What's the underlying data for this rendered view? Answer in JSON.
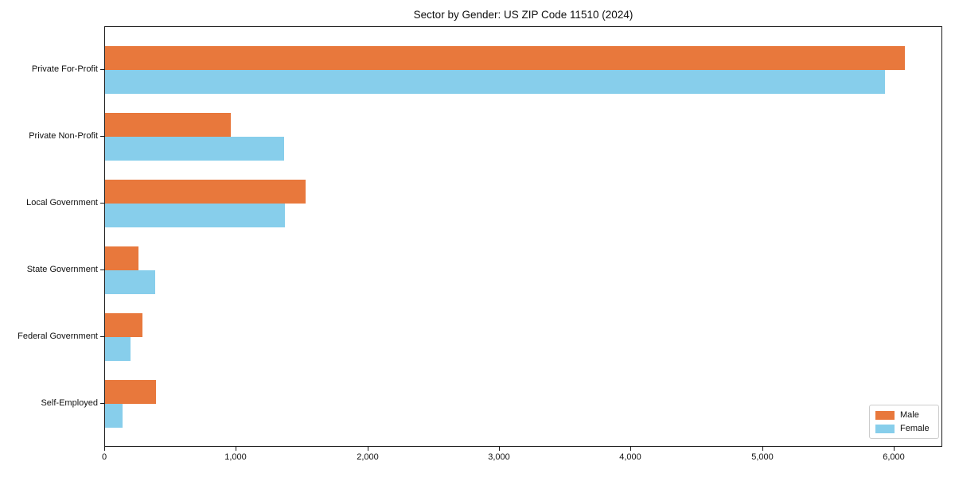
{
  "chart_data": {
    "type": "bar",
    "orientation": "horizontal",
    "title": "Sector by Gender: US ZIP Code 11510 (2024)",
    "categories": [
      "Private For-Profit",
      "Private Non-Profit",
      "Local Government",
      "State Government",
      "Federal Government",
      "Self-Employed"
    ],
    "series": [
      {
        "name": "Male",
        "color": "#e8783c",
        "values": [
          6080,
          955,
          1525,
          255,
          285,
          390
        ]
      },
      {
        "name": "Female",
        "color": "#87ceeb",
        "values": [
          5930,
          1360,
          1370,
          380,
          195,
          135
        ]
      }
    ],
    "xlabel": "",
    "ylabel": "",
    "xlim": [
      0,
      6370
    ],
    "xticks": [
      0,
      1000,
      2000,
      3000,
      4000,
      5000,
      6000
    ],
    "xtick_labels": [
      "0",
      "1,000",
      "2,000",
      "3,000",
      "4,000",
      "5,000",
      "6,000"
    ],
    "grid": false,
    "legend": {
      "position": "lower right"
    }
  }
}
